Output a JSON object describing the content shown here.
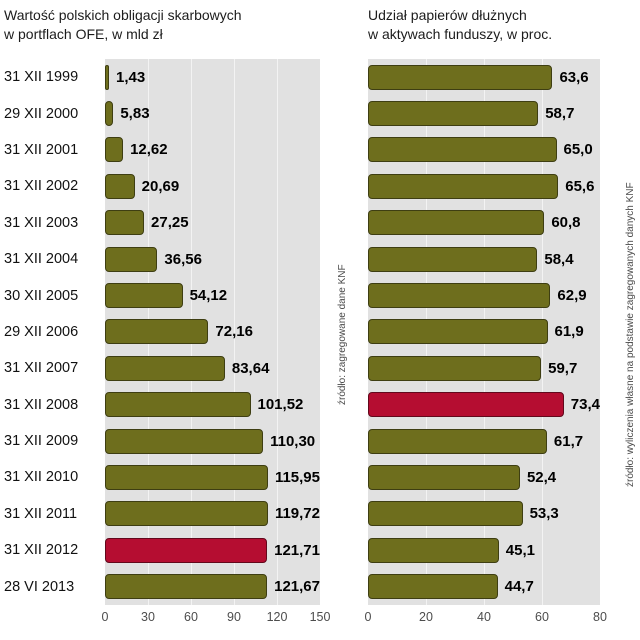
{
  "chart_data": [
    {
      "type": "bar",
      "orientation": "horizontal",
      "title": "Wartość polskich obligacji skarbowych w portflach OFE, w mld zł",
      "title_lines": [
        "Wartość polskich obligacji skarbowych",
        "w portflach OFE, w mld zł"
      ],
      "categories": [
        "31 XII 1999",
        "29 XII 2000",
        "31 XII 2001",
        "31 XII 2002",
        "31 XII 2003",
        "31 XII 2004",
        "30 XII 2005",
        "29 XII 2006",
        "31 XII 2007",
        "31 XII 2008",
        "31 XII 2009",
        "31 XII 2010",
        "31 XII 2011",
        "31 XII 2012",
        "28 VI 2013"
      ],
      "values": [
        1.43,
        5.83,
        12.62,
        20.69,
        27.25,
        36.56,
        54.12,
        72.16,
        83.64,
        101.52,
        110.3,
        115.95,
        119.72,
        121.71,
        121.67
      ],
      "value_labels": [
        "1,43",
        "5,83",
        "12,62",
        "20,69",
        "27,25",
        "36,56",
        "54,12",
        "72,16",
        "83,64",
        "101,52",
        "110,30",
        "115,95",
        "119,72",
        "121,71",
        "121,67"
      ],
      "xlim": [
        0,
        150
      ],
      "xticks": [
        0,
        30,
        60,
        90,
        120,
        150
      ],
      "highlight_index": 13,
      "grid": true,
      "legend": "none",
      "source": "źródło: zagregowane dane KNF"
    },
    {
      "type": "bar",
      "orientation": "horizontal",
      "title": "Udział papierów dłużnych w aktywach funduszy, w proc.",
      "title_lines": [
        "Udział papierów dłużnych",
        "w aktywach funduszy, w proc."
      ],
      "categories": [
        "31 XII 1999",
        "29 XII 2000",
        "31 XII 2001",
        "31 XII 2002",
        "31 XII 2003",
        "31 XII 2004",
        "30 XII 2005",
        "29 XII 2006",
        "31 XII 2007",
        "31 XII 2008",
        "31 XII 2009",
        "31 XII 2010",
        "31 XII 2011",
        "31 XII 2012",
        "28 VI 2013"
      ],
      "values": [
        63.6,
        58.7,
        65.0,
        65.6,
        60.8,
        58.4,
        62.9,
        61.9,
        59.7,
        73.4,
        61.7,
        52.4,
        53.3,
        45.1,
        44.7
      ],
      "value_labels": [
        "63,6",
        "58,7",
        "65,0",
        "65,6",
        "60,8",
        "58,4",
        "62,9",
        "61,9",
        "59,7",
        "73,4",
        "61,7",
        "52,4",
        "53,3",
        "45,1",
        "44,7"
      ],
      "xlim": [
        0,
        80
      ],
      "xticks": [
        0,
        20,
        40,
        60,
        80
      ],
      "highlight_index": 9,
      "grid": true,
      "legend": "none",
      "source": "źródło: wyliczenia własne na podstawie zagregowanych danych KNF"
    }
  ],
  "colors": {
    "bar": "#6e6e1d",
    "bar_border": "#3e3e12",
    "highlight": "#b50d31",
    "highlight_border": "#62081c",
    "plot_bg": "#e1e1e1",
    "value_text": "#000000",
    "axis_text": "#4d4d4d"
  }
}
